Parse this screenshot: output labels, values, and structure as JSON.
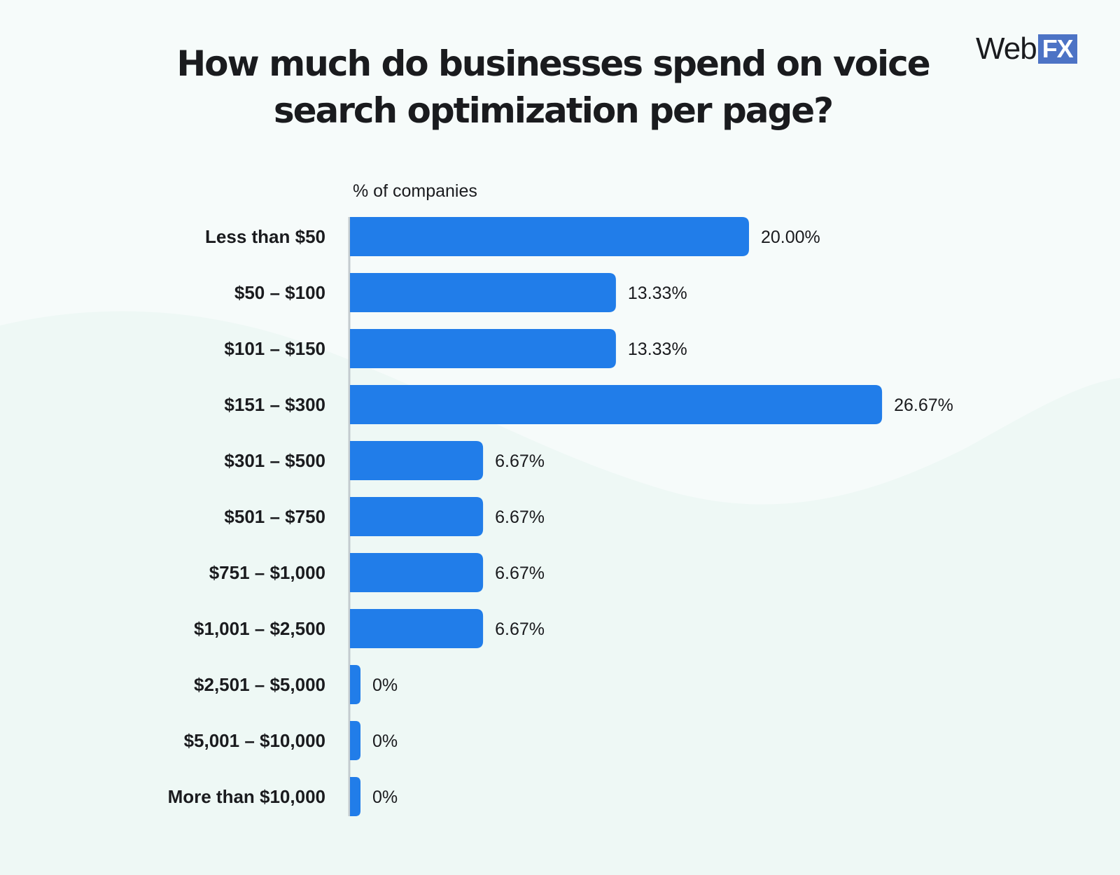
{
  "title": "How much do businesses spend on voice search optimization per page?",
  "logo": {
    "text": "Web",
    "badge": "FX"
  },
  "colors": {
    "bar": "#217de9",
    "axis": "#c4cbcf",
    "text": "#1a1b1e",
    "background": "#f6fbfa",
    "wave": "#eaf6f3"
  },
  "chart_data": {
    "type": "bar",
    "orientation": "horizontal",
    "xlabel": "% of companies",
    "ylabel": "",
    "categories": [
      "Less than $50",
      "$50 – $100",
      "$101 – $150",
      "$151 – $300",
      "$301 – $500",
      "$501 – $750",
      "$751 – $1,000",
      "$1,001 – $2,500",
      "$2,501 – $5,000",
      "$5,001 – $10,000",
      "More than $10,000"
    ],
    "values": [
      20.0,
      13.33,
      13.33,
      26.67,
      6.67,
      6.67,
      6.67,
      6.67,
      0,
      0,
      0
    ],
    "value_labels": [
      "20.00%",
      "13.33%",
      "13.33%",
      "26.67%",
      "6.67%",
      "6.67%",
      "6.67%",
      "6.67%",
      "0%",
      "0%",
      "0%"
    ],
    "grid": false,
    "legend": "none"
  }
}
